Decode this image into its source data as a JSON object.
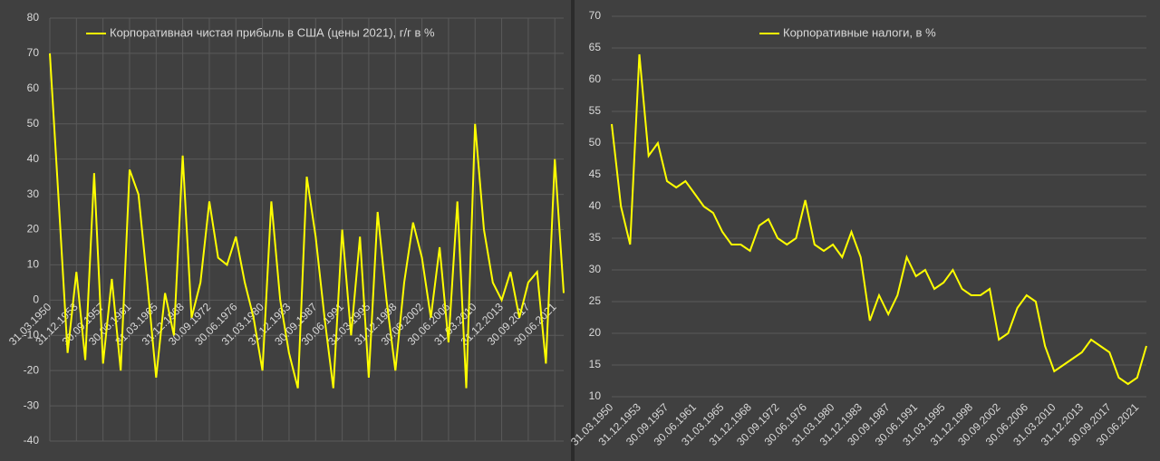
{
  "chart_data": [
    {
      "type": "line",
      "categories": [
        "31.03.1950",
        null,
        null,
        "31.12.1953",
        null,
        null,
        "30.09.1957",
        null,
        null,
        "30.06.1961",
        null,
        null,
        "31.03.1965",
        null,
        null,
        "31.12.1968",
        null,
        null,
        "30.09.1972",
        null,
        null,
        "30.06.1976",
        null,
        null,
        "31.03.1980",
        null,
        null,
        "31.12.1983",
        null,
        null,
        "30.09.1987",
        null,
        null,
        "30.06.1991",
        null,
        null,
        "31.03.1995",
        null,
        null,
        "31.12.1998",
        null,
        null,
        "30.09.2002",
        null,
        null,
        "30.06.2006",
        null,
        null,
        "31.03.2010",
        null,
        null,
        "31.12.2013",
        null,
        null,
        "30.09.2017",
        null,
        null,
        "30.06.2021",
        null
      ],
      "series": [
        {
          "name": "Корпоративная чистая прибыль в США (цены 2021), г/г в %",
          "color": "#ffff00",
          "values": [
            70,
            28,
            -15,
            8,
            -17,
            36,
            -18,
            6,
            -20,
            37,
            30,
            5,
            -22,
            2,
            -10,
            41,
            -5,
            5,
            28,
            12,
            10,
            18,
            5,
            -5,
            -20,
            28,
            0,
            -15,
            -25,
            35,
            18,
            -5,
            -25,
            20,
            -10,
            18,
            -22,
            25,
            0,
            -20,
            5,
            22,
            12,
            -5,
            15,
            -12,
            28,
            -25,
            50,
            20,
            5,
            0,
            8,
            -5,
            5,
            8,
            -18,
            40,
            2
          ]
        }
      ],
      "ylim": [
        -40,
        80
      ],
      "yticks": [
        -40,
        -30,
        -20,
        -10,
        0,
        10,
        20,
        30,
        40,
        50,
        60,
        70,
        80
      ],
      "grid": true
    },
    {
      "type": "line",
      "categories": [
        "31.03.1950",
        null,
        null,
        "31.12.1953",
        null,
        null,
        "30.09.1957",
        null,
        null,
        "30.06.1961",
        null,
        null,
        "31.03.1965",
        null,
        null,
        "31.12.1968",
        null,
        null,
        "30.09.1972",
        null,
        null,
        "30.06.1976",
        null,
        null,
        "31.03.1980",
        null,
        null,
        "31.12.1983",
        null,
        null,
        "30.09.1987",
        null,
        null,
        "30.06.1991",
        null,
        null,
        "31.03.1995",
        null,
        null,
        "31.12.1998",
        null,
        null,
        "30.09.2002",
        null,
        null,
        "30.06.2006",
        null,
        null,
        "31.03.2010",
        null,
        null,
        "31.12.2013",
        null,
        null,
        "30.09.2017",
        null,
        null,
        "30.06.2021",
        null
      ],
      "series": [
        {
          "name": "Корпоративные налоги, в %",
          "color": "#ffff00",
          "values": [
            53,
            40,
            34,
            64,
            48,
            50,
            44,
            43,
            44,
            42,
            40,
            39,
            36,
            34,
            34,
            33,
            37,
            38,
            35,
            34,
            35,
            41,
            34,
            33,
            34,
            32,
            36,
            32,
            22,
            26,
            23,
            26,
            32,
            29,
            30,
            27,
            28,
            30,
            27,
            26,
            26,
            27,
            19,
            20,
            24,
            26,
            25,
            18,
            14,
            15,
            16,
            17,
            19,
            18,
            17,
            13,
            12,
            13,
            18
          ]
        }
      ],
      "ylim": [
        10,
        70
      ],
      "yticks": [
        10,
        15,
        20,
        25,
        30,
        35,
        40,
        45,
        50,
        55,
        60,
        65,
        70
      ],
      "grid": true
    }
  ]
}
